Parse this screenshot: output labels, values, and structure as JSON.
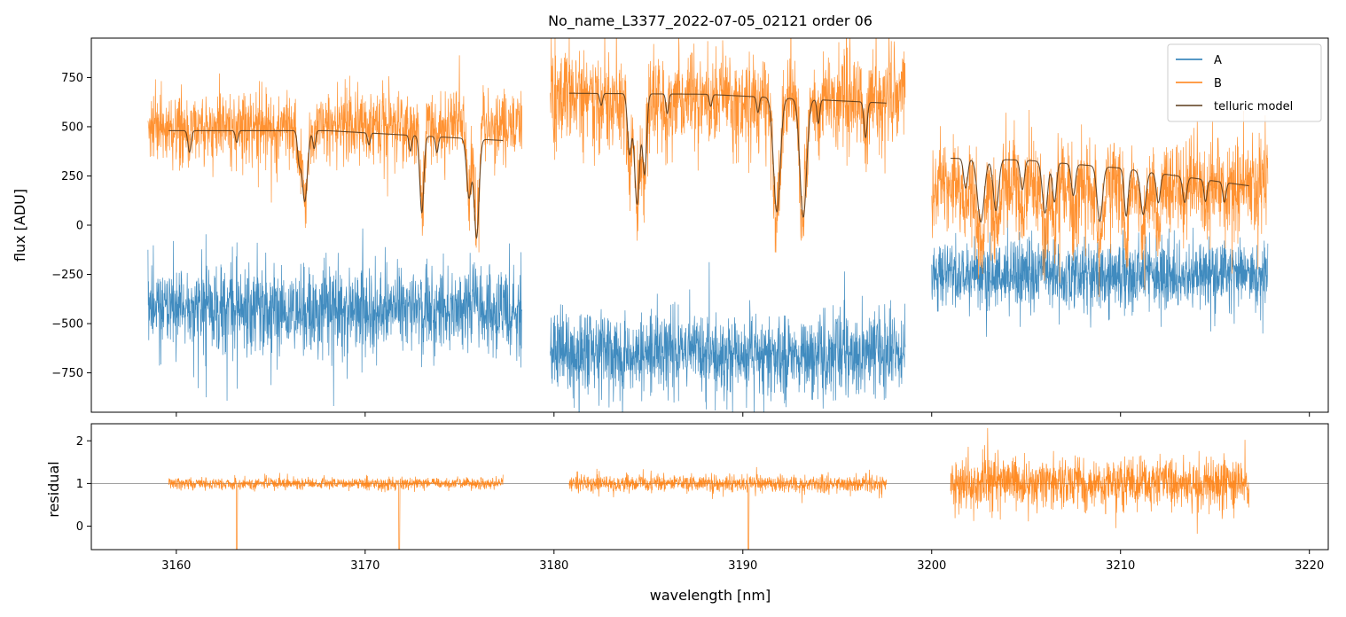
{
  "chart_data": {
    "type": "line",
    "title": "No_name_L3377_2022-07-05_02121  order 06",
    "xlabel": "wavelength [nm]",
    "xlim": [
      3155.5,
      3221.0
    ],
    "x_ticks": [
      3160,
      3170,
      3180,
      3190,
      3200,
      3210,
      3220
    ],
    "x_tick_labels": [
      "3160",
      "3170",
      "3180",
      "3190",
      "3200",
      "3210",
      "3220"
    ],
    "colors": {
      "A": "#1f77b4",
      "B": "#ff7f0e",
      "telluric": "#5a3a1a",
      "hline": "#808080"
    },
    "top_panel": {
      "ylabel": "flux [ADU]",
      "ylim": [
        -950,
        950
      ],
      "y_ticks": [
        -750,
        -500,
        -250,
        0,
        250,
        500,
        750
      ],
      "y_tick_labels": [
        "−750",
        "−500",
        "−250",
        "0",
        "250",
        "500",
        "750"
      ],
      "legend": {
        "position": "top-right",
        "entries": [
          "A",
          "B",
          "telluric model"
        ]
      },
      "segments": [
        {
          "range": [
            3158.5,
            3178.3
          ],
          "A_level": -430,
          "A_noise": 200,
          "B_level": 500,
          "B_noise": 180,
          "telluric": {
            "range": [
              3159.6,
              3177.3
            ],
            "continuum": [
              [
                3159.6,
                480
              ],
              [
                3168.0,
                480
              ],
              [
                3177.3,
                430
              ]
            ],
            "lines": [
              {
                "center": 3160.7,
                "depth": 110,
                "width": 0.12
              },
              {
                "center": 3163.2,
                "depth": 60,
                "width": 0.1
              },
              {
                "center": 3166.5,
                "depth": 140,
                "width": 0.12
              },
              {
                "center": 3166.8,
                "depth": 360,
                "width": 0.2
              },
              {
                "center": 3167.3,
                "depth": 90,
                "width": 0.1
              },
              {
                "center": 3170.2,
                "depth": 60,
                "width": 0.1
              },
              {
                "center": 3172.4,
                "depth": 80,
                "width": 0.1
              },
              {
                "center": 3173.0,
                "depth": 390,
                "width": 0.15
              },
              {
                "center": 3173.8,
                "depth": 80,
                "width": 0.1
              },
              {
                "center": 3175.5,
                "depth": 300,
                "width": 0.18
              },
              {
                "center": 3175.9,
                "depth": 500,
                "width": 0.18
              }
            ]
          }
        },
        {
          "range": [
            3179.8,
            3198.6
          ],
          "A_level": -650,
          "A_noise": 180,
          "B_level": 640,
          "B_noise": 220,
          "telluric": {
            "range": [
              3180.8,
              3197.6
            ],
            "continuum": [
              [
                3180.8,
                670
              ],
              [
                3188.0,
                665
              ],
              [
                3197.6,
                620
              ]
            ],
            "lines": [
              {
                "center": 3182.5,
                "depth": 60,
                "width": 0.1
              },
              {
                "center": 3184.0,
                "depth": 300,
                "width": 0.15
              },
              {
                "center": 3184.4,
                "depth": 560,
                "width": 0.2
              },
              {
                "center": 3184.8,
                "depth": 400,
                "width": 0.15
              },
              {
                "center": 3186.0,
                "depth": 100,
                "width": 0.1
              },
              {
                "center": 3188.3,
                "depth": 60,
                "width": 0.1
              },
              {
                "center": 3190.8,
                "depth": 80,
                "width": 0.1
              },
              {
                "center": 3191.8,
                "depth": 580,
                "width": 0.25
              },
              {
                "center": 3193.2,
                "depth": 600,
                "width": 0.25
              },
              {
                "center": 3194.0,
                "depth": 120,
                "width": 0.1
              },
              {
                "center": 3196.5,
                "depth": 180,
                "width": 0.12
              }
            ]
          }
        },
        {
          "range": [
            3200.0,
            3217.8
          ],
          "A_level": -250,
          "A_noise": 150,
          "B_level": 200,
          "B_noise": 220,
          "telluric": {
            "range": [
              3201.0,
              3216.8
            ],
            "continuum": [
              [
                3201.0,
                340
              ],
              [
                3205.0,
                330
              ],
              [
                3210.0,
                290
              ],
              [
                3216.8,
                200
              ]
            ],
            "lines": [
              {
                "center": 3201.8,
                "depth": 150,
                "width": 0.15
              },
              {
                "center": 3202.6,
                "depth": 320,
                "width": 0.25
              },
              {
                "center": 3203.4,
                "depth": 260,
                "width": 0.2
              },
              {
                "center": 3204.8,
                "depth": 150,
                "width": 0.15
              },
              {
                "center": 3206.0,
                "depth": 260,
                "width": 0.2
              },
              {
                "center": 3206.5,
                "depth": 200,
                "width": 0.15
              },
              {
                "center": 3207.5,
                "depth": 160,
                "width": 0.15
              },
              {
                "center": 3208.9,
                "depth": 280,
                "width": 0.2
              },
              {
                "center": 3210.3,
                "depth": 240,
                "width": 0.15
              },
              {
                "center": 3211.2,
                "depth": 220,
                "width": 0.2
              },
              {
                "center": 3212.0,
                "depth": 150,
                "width": 0.15
              },
              {
                "center": 3213.4,
                "depth": 130,
                "width": 0.15
              },
              {
                "center": 3214.5,
                "depth": 110,
                "width": 0.12
              },
              {
                "center": 3215.5,
                "depth": 100,
                "width": 0.12
              }
            ]
          }
        }
      ]
    },
    "bottom_panel": {
      "ylabel": "residual",
      "ylim": [
        -0.55,
        2.4
      ],
      "y_ticks": [
        0,
        1,
        2
      ],
      "y_tick_labels": [
        "0",
        "1",
        "2"
      ],
      "hline": 1,
      "segments": [
        {
          "range": [
            3159.6,
            3177.3
          ],
          "level": 1.0,
          "noise": 0.14
        },
        {
          "range": [
            3180.8,
            3197.6
          ],
          "level": 1.0,
          "noise": 0.2
        },
        {
          "range": [
            3201.0,
            3216.8
          ],
          "level": 1.0,
          "noise": 0.6
        }
      ],
      "dips": [
        [
          3163.2,
          -0.55
        ],
        [
          3171.8,
          -0.55
        ],
        [
          3190.3,
          -0.55
        ]
      ]
    }
  }
}
